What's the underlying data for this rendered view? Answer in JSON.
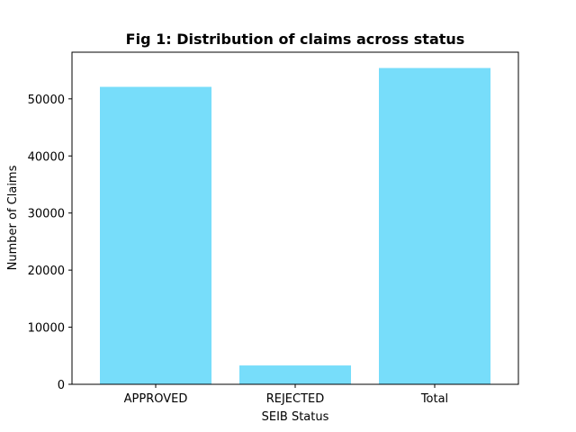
{
  "chart_data": {
    "type": "bar",
    "title": "Fig 1: Distribution of claims across status",
    "xlabel": "SEIB Status",
    "ylabel": "Number of Claims",
    "categories": [
      "APPROVED",
      "REJECTED",
      "Total"
    ],
    "values": [
      52100,
      3300,
      55400
    ],
    "ylim": [
      0,
      58170
    ],
    "yticks": [
      0,
      10000,
      20000,
      30000,
      40000,
      50000
    ],
    "grid": false,
    "bar_color": "#77ddfa"
  }
}
